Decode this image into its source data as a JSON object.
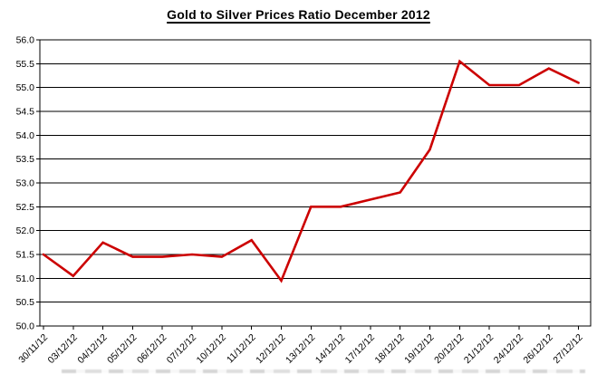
{
  "chart_data": {
    "type": "line",
    "title": "Gold to Silver Prices Ratio December 2012",
    "categories": [
      "30/11/12",
      "03/12/12",
      "04/12/12",
      "05/12/12",
      "06/12/12",
      "07/12/12",
      "10/12/12",
      "11/12/12",
      "12/12/12",
      "13/12/12",
      "14/12/12",
      "17/12/12",
      "18/12/12",
      "19/12/12",
      "20/12/12",
      "21/12/12",
      "24/12/12",
      "26/12/12",
      "27/12/12"
    ],
    "values": [
      51.5,
      51.05,
      51.75,
      51.45,
      51.45,
      51.5,
      51.45,
      51.8,
      50.95,
      52.5,
      52.5,
      52.65,
      52.8,
      53.7,
      55.55,
      55.05,
      55.05,
      55.4,
      55.1
    ],
    "y_tick_labels": [
      "56.0",
      "55.5",
      "55.0",
      "54.5",
      "54.0",
      "53.5",
      "53.0",
      "52.5",
      "52.0",
      "51.5",
      "51.0",
      "50.5",
      "50.0"
    ],
    "ylim": [
      50.0,
      56.0
    ],
    "ytick_step": 0.5,
    "xlabel": "",
    "ylabel": "",
    "legend": "none",
    "grid": "horizontal",
    "x_label_rotation_deg": 45,
    "line_color": "#CC0000",
    "grid_color": "#000000",
    "axis_color": "#000000",
    "text_color": "#000000",
    "background_color": "#FFFFFF"
  }
}
